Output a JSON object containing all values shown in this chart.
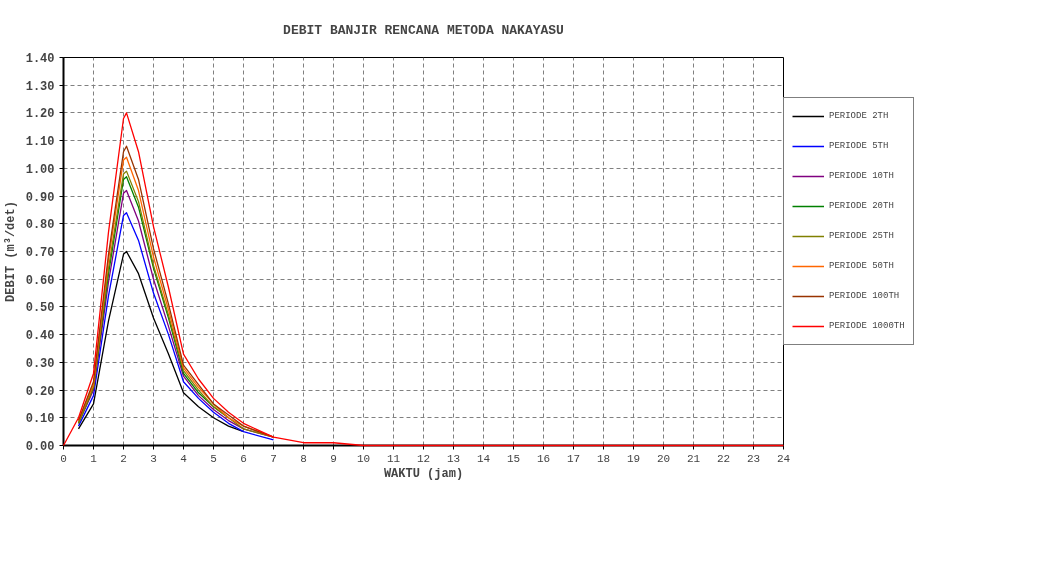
{
  "chart_data": {
    "type": "line",
    "title": "DEBIT BANJIR RENCANA METODA NAKAYASU",
    "xlabel": "WAKTU (jam)",
    "ylabel": "DEBIT (m³/det)",
    "x": [
      0,
      0.5,
      1,
      1.5,
      2,
      2.1,
      2.5,
      3,
      3.5,
      4,
      4.5,
      5,
      5.5,
      6,
      7,
      8,
      9,
      10,
      11,
      12,
      24
    ],
    "series": [
      {
        "name": "PERIODE 2TH",
        "color": "#000000",
        "values": [
          null,
          0.06,
          0.15,
          0.45,
          0.69,
          0.7,
          0.62,
          0.46,
          0.33,
          0.19,
          0.14,
          0.1,
          0.07,
          0.05,
          null,
          null,
          null,
          null,
          null,
          null,
          null
        ]
      },
      {
        "name": "PERIODE 5TH",
        "color": "#0000ff",
        "values": [
          null,
          0.07,
          0.18,
          0.54,
          0.83,
          0.84,
          0.74,
          0.55,
          0.4,
          0.23,
          0.17,
          0.12,
          0.08,
          0.05,
          0.02,
          null,
          null,
          null,
          null,
          null,
          null
        ]
      },
      {
        "name": "PERIODE 10TH",
        "color": "#800080",
        "values": [
          null,
          0.08,
          0.2,
          0.59,
          0.91,
          0.92,
          0.81,
          0.6,
          0.43,
          0.25,
          0.18,
          0.13,
          0.09,
          0.06,
          0.03,
          null,
          null,
          null,
          null,
          null,
          null
        ]
      },
      {
        "name": "PERIODE 20TH",
        "color": "#008000",
        "values": [
          null,
          0.08,
          0.21,
          0.62,
          0.96,
          0.97,
          0.86,
          0.64,
          0.46,
          0.26,
          0.19,
          0.14,
          0.1,
          null,
          null,
          null,
          null,
          null,
          null,
          null,
          null
        ]
      },
      {
        "name": "PERIODE 25TH",
        "color": "#808000",
        "values": [
          null,
          0.08,
          0.21,
          0.64,
          0.98,
          0.99,
          0.88,
          0.65,
          0.47,
          0.27,
          0.2,
          0.14,
          0.1,
          0.06,
          0.03,
          null,
          null,
          null,
          null,
          null,
          null
        ]
      },
      {
        "name": "PERIODE 50TH",
        "color": "#ff6600",
        "values": [
          null,
          0.09,
          0.22,
          0.67,
          1.03,
          1.04,
          0.92,
          0.68,
          0.49,
          0.28,
          0.21,
          0.15,
          0.1,
          0.07,
          0.03,
          null,
          null,
          null,
          null,
          null,
          null
        ]
      },
      {
        "name": "PERIODE 100TH",
        "color": "#993300",
        "values": [
          null,
          0.09,
          0.23,
          0.69,
          1.06,
          1.08,
          0.96,
          0.71,
          0.51,
          0.29,
          0.22,
          0.15,
          0.11,
          0.07,
          0.03,
          null,
          null,
          null,
          null,
          null,
          null
        ]
      },
      {
        "name": "PERIODE 1000TH",
        "color": "#ff0000",
        "values": [
          0,
          0.1,
          0.26,
          0.77,
          1.18,
          1.2,
          1.06,
          0.79,
          0.57,
          0.33,
          0.24,
          0.17,
          0.12,
          0.08,
          0.03,
          0.01,
          0.01,
          0,
          0,
          0,
          0
        ]
      }
    ],
    "xlim": [
      0,
      24
    ],
    "xticks": [
      0,
      1,
      2,
      3,
      4,
      5,
      6,
      7,
      8,
      9,
      10,
      11,
      12,
      13,
      14,
      15,
      16,
      17,
      18,
      19,
      20,
      21,
      22,
      23,
      24
    ],
    "ylim": [
      0,
      1.4
    ],
    "yticks": [
      {
        "value": 0,
        "label": "0.00"
      },
      {
        "value": 0.1,
        "label": "0.10"
      },
      {
        "value": 0.2,
        "label": "0.20"
      },
      {
        "value": 0.3,
        "label": "0.30"
      },
      {
        "value": 0.4,
        "label": "0.40"
      },
      {
        "value": 0.5,
        "label": "0.50"
      },
      {
        "value": 0.6,
        "label": "0.60"
      },
      {
        "value": 0.7,
        "label": "0.70"
      },
      {
        "value": 0.8,
        "label": "0.80"
      },
      {
        "value": 0.9,
        "label": "0.90"
      },
      {
        "value": 1.0,
        "label": "1.00"
      },
      {
        "value": 1.1,
        "label": "1.10"
      },
      {
        "value": 1.2,
        "label": "1.20"
      },
      {
        "value": 1.3,
        "label": "1.30"
      },
      {
        "value": 1.4,
        "label": "1.40"
      }
    ],
    "grid": true,
    "legend": "right",
    "marker": "none",
    "line_style": "solid"
  }
}
